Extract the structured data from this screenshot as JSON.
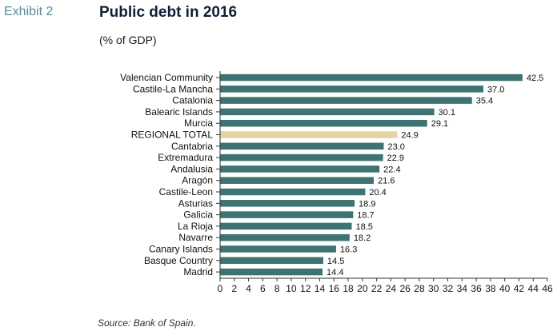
{
  "header": {
    "exhibit": "Exhibit 2",
    "title": "Public debt in 2016",
    "subtitle": "(% of GDP)"
  },
  "footer": {
    "source": "Source: Bank of Spain."
  },
  "colors": {
    "bar": "#3d7373",
    "highlight": "#e6d3a3",
    "axis": "#333333",
    "text": "#111111"
  },
  "chart_data": {
    "type": "bar",
    "orientation": "horizontal",
    "title": "Public debt in 2016",
    "subtitle": "(% of GDP)",
    "xlabel": "",
    "ylabel": "",
    "xlim": [
      0,
      46
    ],
    "xticks": [
      0,
      2,
      4,
      6,
      8,
      10,
      12,
      14,
      16,
      18,
      20,
      22,
      24,
      26,
      28,
      30,
      32,
      34,
      36,
      38,
      40,
      42,
      44,
      46
    ],
    "grid": false,
    "legend": false,
    "highlight_category": "REGIONAL TOTAL",
    "categories": [
      "Valencian Community",
      "Castile-La Mancha",
      "Catalonia",
      "Balearic Islands",
      "Murcia",
      "REGIONAL TOTAL",
      "Cantabria",
      "Extremadura",
      "Andalusia",
      "Aragón",
      "Castile-Leon",
      "Asturias",
      "Galicia",
      "La Rioja",
      "Navarre",
      "Canary Islands",
      "Basque Country",
      "Madrid"
    ],
    "values": [
      42.5,
      37.0,
      35.4,
      30.1,
      29.1,
      24.9,
      23.0,
      22.9,
      22.4,
      21.6,
      20.4,
      18.9,
      18.7,
      18.5,
      18.2,
      16.3,
      14.5,
      14.4
    ],
    "value_labels": [
      "42.5",
      "37.0",
      "35.4",
      "30.1",
      "29.1",
      "24.9",
      "23.0",
      "22.9",
      "22.4",
      "21.6",
      "20.4",
      "18.9",
      "18.7",
      "18.5",
      "18.2",
      "16.3",
      "14.5",
      "14.4"
    ]
  }
}
